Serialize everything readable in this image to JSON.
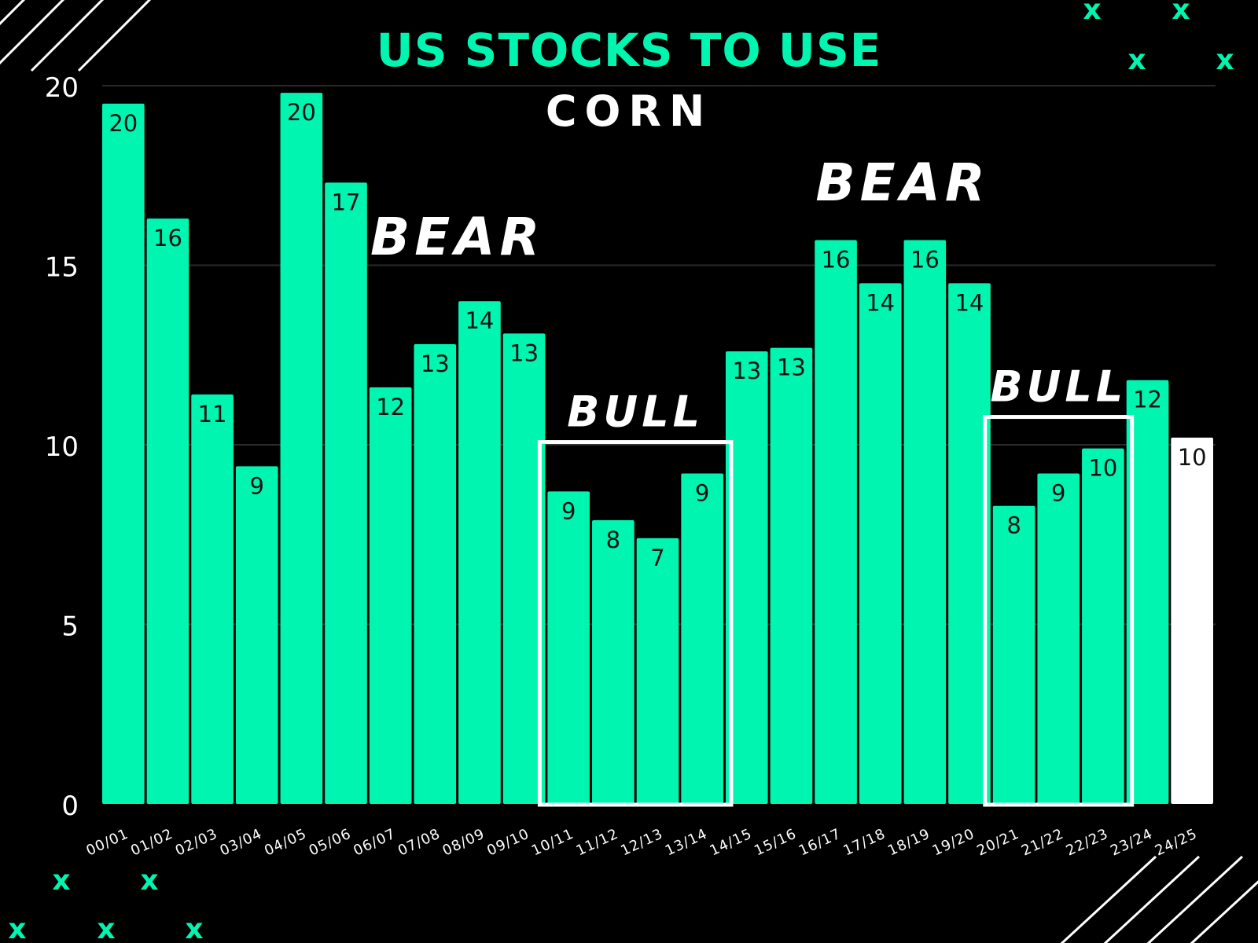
{
  "title": "US STOCKS TO USE",
  "subtitle": "CORN",
  "colors": {
    "background": "#000000",
    "bar": "#00f5b0",
    "highlight_bar": "#ffffff",
    "accent": "#00f5b0",
    "grid": "#2a2a2a",
    "text": "#ffffff"
  },
  "decorations": {
    "x_mark": "x",
    "x_mark_color": "#00f5b0",
    "stripe_color": "#ffffff"
  },
  "chart_data": {
    "type": "bar",
    "title": "US STOCKS TO USE",
    "subtitle": "CORN",
    "xlabel": "",
    "ylabel": "",
    "ylim": [
      0,
      20
    ],
    "yticks": [
      0,
      5,
      10,
      15,
      20
    ],
    "grid": true,
    "categories": [
      "00/01",
      "01/02",
      "02/03",
      "03/04",
      "04/05",
      "05/06",
      "06/07",
      "07/08",
      "08/09",
      "09/10",
      "10/11",
      "11/12",
      "12/13",
      "13/14",
      "14/15",
      "15/16",
      "16/17",
      "17/18",
      "18/19",
      "19/20",
      "20/21",
      "21/22",
      "22/23",
      "23/24",
      "24/25"
    ],
    "values": [
      19.5,
      16.3,
      11.4,
      9.4,
      19.8,
      17.3,
      11.6,
      12.8,
      14.0,
      13.1,
      8.7,
      7.9,
      7.4,
      9.2,
      12.6,
      12.7,
      15.7,
      14.5,
      15.7,
      14.5,
      8.3,
      9.2,
      9.9,
      11.8,
      10.2
    ],
    "data_labels": [
      "20",
      "16",
      "11",
      "9",
      "20",
      "17",
      "12",
      "13",
      "14",
      "13",
      "9",
      "8",
      "7",
      "9",
      "13",
      "13",
      "16",
      "14",
      "16",
      "14",
      "8",
      "9",
      "10",
      "12",
      "10"
    ],
    "highlight_categories": [
      "24/25"
    ],
    "annotations": [
      {
        "text": "BEAR",
        "type": "label",
        "category_range": [
          "07/08",
          "08/09"
        ],
        "level": 15.3
      },
      {
        "text": "BEAR",
        "type": "label",
        "category_range": [
          "17/18",
          "18/19"
        ],
        "level": 16.8
      },
      {
        "text": "BULL",
        "type": "box",
        "category_range": [
          "10/11",
          "13/14"
        ]
      },
      {
        "text": "BULL",
        "type": "box",
        "category_range": [
          "20/21",
          "22/23"
        ]
      }
    ]
  }
}
